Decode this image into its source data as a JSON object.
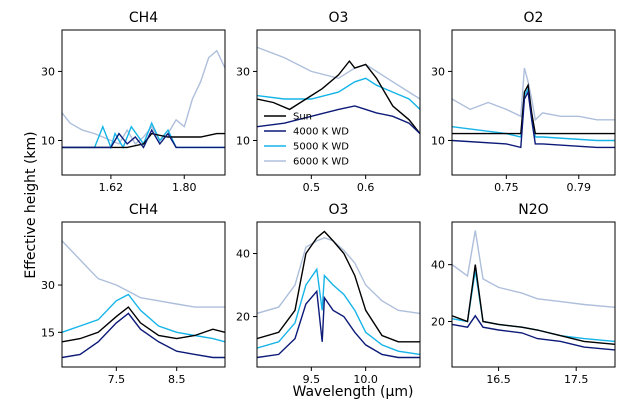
{
  "figure": {
    "ylabel": "Effective height (km)",
    "xlabel": "Wavelength (μm)"
  },
  "legend": {
    "items": [
      {
        "name": "Sun",
        "color": "#000000"
      },
      {
        "name": "4000 K WD",
        "color": "#0c1a78"
      },
      {
        "name": "5000 K WD",
        "color": "#15b4e8"
      },
      {
        "name": "6000 K WD",
        "color": "#aebfdc"
      }
    ]
  },
  "chart_data": [
    {
      "type": "line",
      "title": "CH4",
      "xlim": [
        1.5,
        1.9
      ],
      "ylim": [
        0,
        42
      ],
      "xticks": [
        1.62,
        1.8
      ],
      "xtick_labels": [
        "1.62",
        "1.80"
      ],
      "yticks": [
        10,
        30
      ],
      "ytick_labels": [
        "10",
        "30"
      ],
      "series": [
        {
          "name": "Sun",
          "x": [
            1.5,
            1.6,
            1.66,
            1.7,
            1.72,
            1.76,
            1.8,
            1.84,
            1.88,
            1.9
          ],
          "y": [
            8,
            8,
            8,
            9,
            12,
            11,
            11,
            11,
            12,
            12
          ]
        },
        {
          "name": "4000 K WD",
          "x": [
            1.5,
            1.6,
            1.62,
            1.64,
            1.66,
            1.68,
            1.7,
            1.72,
            1.74,
            1.76,
            1.78,
            1.8,
            1.9
          ],
          "y": [
            8,
            8,
            8,
            12,
            9,
            11,
            8,
            13,
            9,
            12,
            8,
            8,
            8
          ]
        },
        {
          "name": "5000 K WD",
          "x": [
            1.5,
            1.58,
            1.6,
            1.62,
            1.63,
            1.65,
            1.67,
            1.7,
            1.72,
            1.74,
            1.76,
            1.78,
            1.8,
            1.9
          ],
          "y": [
            8,
            8,
            14,
            8,
            12,
            8,
            14,
            9,
            15,
            10,
            13,
            8,
            8,
            8
          ]
        },
        {
          "name": "6000 K WD",
          "x": [
            1.5,
            1.52,
            1.55,
            1.58,
            1.6,
            1.62,
            1.64,
            1.66,
            1.68,
            1.7,
            1.72,
            1.74,
            1.76,
            1.78,
            1.8,
            1.82,
            1.84,
            1.86,
            1.88,
            1.9
          ],
          "y": [
            18,
            15,
            13,
            12,
            11,
            10,
            9,
            13,
            9,
            11,
            14,
            10,
            12,
            16,
            14,
            22,
            27,
            34,
            36,
            31
          ]
        }
      ]
    },
    {
      "type": "line",
      "title": "O3",
      "xlim": [
        0.4,
        0.7
      ],
      "ylim": [
        0,
        42
      ],
      "xticks": [
        0.5,
        0.6
      ],
      "xtick_labels": [
        "0.5",
        "0.6"
      ],
      "yticks": [
        10,
        30
      ],
      "ytick_labels": [
        "10",
        "30"
      ],
      "series": [
        {
          "name": "Sun",
          "x": [
            0.4,
            0.43,
            0.46,
            0.48,
            0.5,
            0.52,
            0.55,
            0.57,
            0.58,
            0.6,
            0.62,
            0.65,
            0.68,
            0.7
          ],
          "y": [
            22,
            21,
            19,
            21,
            23,
            25,
            29,
            33,
            31,
            32,
            28,
            20,
            16,
            12
          ]
        },
        {
          "name": "4000 K WD",
          "x": [
            0.4,
            0.45,
            0.5,
            0.55,
            0.58,
            0.6,
            0.62,
            0.65,
            0.68,
            0.7
          ],
          "y": [
            14,
            15,
            17,
            19,
            20,
            19,
            18,
            17,
            15,
            12
          ]
        },
        {
          "name": "5000 K WD",
          "x": [
            0.4,
            0.45,
            0.5,
            0.55,
            0.58,
            0.6,
            0.62,
            0.65,
            0.68,
            0.7
          ],
          "y": [
            23,
            22,
            22,
            24,
            27,
            28,
            26,
            24,
            22,
            19
          ]
        },
        {
          "name": "6000 K WD",
          "x": [
            0.4,
            0.45,
            0.5,
            0.55,
            0.58,
            0.6,
            0.62,
            0.65,
            0.68,
            0.7
          ],
          "y": [
            37,
            34,
            30,
            28,
            31,
            32,
            30,
            27,
            24,
            22
          ]
        }
      ]
    },
    {
      "type": "line",
      "title": "O2",
      "xlim": [
        0.72,
        0.81
      ],
      "ylim": [
        0,
        42
      ],
      "xticks": [
        0.75,
        0.79
      ],
      "xtick_labels": [
        "0.75",
        "0.79"
      ],
      "yticks": [
        10,
        30
      ],
      "ytick_labels": [
        "10",
        "30"
      ],
      "series": [
        {
          "name": "Sun",
          "x": [
            0.72,
            0.75,
            0.758,
            0.76,
            0.762,
            0.764,
            0.766,
            0.77,
            0.8,
            0.81
          ],
          "y": [
            12,
            12,
            12,
            24,
            26,
            18,
            12,
            12,
            12,
            12
          ]
        },
        {
          "name": "4000 K WD",
          "x": [
            0.72,
            0.75,
            0.758,
            0.76,
            0.762,
            0.764,
            0.766,
            0.77,
            0.8,
            0.81
          ],
          "y": [
            10,
            9,
            8,
            22,
            24,
            16,
            9,
            9,
            8,
            8
          ]
        },
        {
          "name": "5000 K WD",
          "x": [
            0.72,
            0.75,
            0.758,
            0.76,
            0.762,
            0.764,
            0.766,
            0.77,
            0.8,
            0.81
          ],
          "y": [
            14,
            12,
            11,
            23,
            25,
            17,
            11,
            11,
            10,
            10
          ]
        },
        {
          "name": "6000 K WD",
          "x": [
            0.72,
            0.73,
            0.74,
            0.75,
            0.758,
            0.76,
            0.762,
            0.764,
            0.766,
            0.77,
            0.78,
            0.79,
            0.8,
            0.81
          ],
          "y": [
            22,
            19,
            21,
            19,
            17,
            31,
            27,
            22,
            16,
            18,
            17,
            17,
            16,
            16
          ]
        }
      ]
    },
    {
      "type": "line",
      "title": "CH4",
      "xlim": [
        6.6,
        9.3
      ],
      "ylim": [
        4,
        50
      ],
      "xticks": [
        7.5,
        8.5
      ],
      "xtick_labels": [
        "7.5",
        "8.5"
      ],
      "yticks": [
        15,
        30
      ],
      "ytick_labels": [
        "15",
        "30"
      ],
      "series": [
        {
          "name": "Sun",
          "x": [
            6.6,
            6.9,
            7.2,
            7.5,
            7.7,
            7.9,
            8.2,
            8.5,
            8.8,
            9.1,
            9.3
          ],
          "y": [
            12,
            13,
            15,
            20,
            23,
            18,
            14,
            13,
            14,
            16,
            15
          ]
        },
        {
          "name": "4000 K WD",
          "x": [
            6.6,
            6.9,
            7.2,
            7.5,
            7.7,
            7.9,
            8.2,
            8.5,
            8.8,
            9.1,
            9.3
          ],
          "y": [
            7,
            8,
            12,
            18,
            21,
            16,
            12,
            9,
            8,
            7,
            7
          ]
        },
        {
          "name": "5000 K WD",
          "x": [
            6.6,
            6.9,
            7.2,
            7.5,
            7.7,
            7.9,
            8.2,
            8.5,
            8.8,
            9.1,
            9.3
          ],
          "y": [
            15,
            17,
            19,
            25,
            27,
            22,
            17,
            15,
            14,
            13,
            12
          ]
        },
        {
          "name": "6000 K WD",
          "x": [
            6.6,
            6.8,
            7.0,
            7.2,
            7.5,
            7.7,
            7.9,
            8.2,
            8.5,
            8.8,
            9.1,
            9.3
          ],
          "y": [
            44,
            40,
            36,
            32,
            30,
            28,
            26,
            25,
            24,
            23,
            23,
            23
          ]
        }
      ]
    },
    {
      "type": "line",
      "title": "O3",
      "xlim": [
        9.0,
        10.5
      ],
      "ylim": [
        4,
        50
      ],
      "xticks": [
        9.5,
        10.0
      ],
      "xtick_labels": [
        "9.5",
        "10.0"
      ],
      "yticks": [
        20,
        40
      ],
      "ytick_labels": [
        "20",
        "40"
      ],
      "series": [
        {
          "name": "Sun",
          "x": [
            9.0,
            9.2,
            9.35,
            9.45,
            9.55,
            9.62,
            9.7,
            9.8,
            9.9,
            10.0,
            10.15,
            10.3,
            10.5
          ],
          "y": [
            13,
            15,
            22,
            40,
            45,
            47,
            44,
            40,
            33,
            22,
            14,
            12,
            12
          ]
        },
        {
          "name": "4000 K WD",
          "x": [
            9.0,
            9.2,
            9.35,
            9.45,
            9.55,
            9.6,
            9.62,
            9.7,
            9.8,
            9.9,
            10.0,
            10.15,
            10.3,
            10.5
          ],
          "y": [
            7,
            8,
            13,
            24,
            28,
            12,
            26,
            22,
            20,
            15,
            11,
            8,
            7,
            7
          ]
        },
        {
          "name": "5000 K WD",
          "x": [
            9.0,
            9.2,
            9.35,
            9.45,
            9.55,
            9.6,
            9.62,
            9.7,
            9.8,
            9.9,
            10.0,
            10.15,
            10.3,
            10.5
          ],
          "y": [
            10,
            12,
            18,
            30,
            35,
            22,
            33,
            30,
            27,
            22,
            15,
            11,
            9,
            8
          ]
        },
        {
          "name": "6000 K WD",
          "x": [
            9.0,
            9.2,
            9.35,
            9.45,
            9.55,
            9.62,
            9.7,
            9.8,
            9.9,
            10.0,
            10.15,
            10.3,
            10.5
          ],
          "y": [
            21,
            23,
            30,
            42,
            44,
            45,
            44,
            41,
            37,
            30,
            25,
            22,
            21
          ]
        }
      ]
    },
    {
      "type": "line",
      "title": "N2O",
      "xlim": [
        15.9,
        18.0
      ],
      "ylim": [
        4,
        55
      ],
      "xticks": [
        16.5,
        17.5
      ],
      "xtick_labels": [
        "16.5",
        "17.5"
      ],
      "yticks": [
        20,
        40
      ],
      "ytick_labels": [
        "20",
        "40"
      ],
      "series": [
        {
          "name": "Sun",
          "x": [
            15.9,
            16.1,
            16.2,
            16.3,
            16.5,
            16.8,
            17.0,
            17.3,
            17.6,
            18.0
          ],
          "y": [
            22,
            20,
            40,
            20,
            19,
            18,
            17,
            15,
            13,
            12
          ]
        },
        {
          "name": "4000 K WD",
          "x": [
            15.9,
            16.1,
            16.2,
            16.3,
            16.5,
            16.8,
            17.0,
            17.3,
            17.6,
            18.0
          ],
          "y": [
            19,
            18,
            22,
            18,
            17,
            16,
            14,
            13,
            11,
            10
          ]
        },
        {
          "name": "5000 K WD",
          "x": [
            15.9,
            16.1,
            16.2,
            16.3,
            16.5,
            16.8,
            17.0,
            17.3,
            17.6,
            18.0
          ],
          "y": [
            21,
            20,
            38,
            20,
            19,
            18,
            17,
            15,
            14,
            13
          ]
        },
        {
          "name": "6000 K WD",
          "x": [
            15.9,
            16.1,
            16.2,
            16.3,
            16.5,
            16.8,
            17.0,
            17.3,
            17.6,
            18.0
          ],
          "y": [
            40,
            36,
            52,
            35,
            32,
            30,
            28,
            27,
            26,
            25
          ]
        }
      ]
    }
  ]
}
